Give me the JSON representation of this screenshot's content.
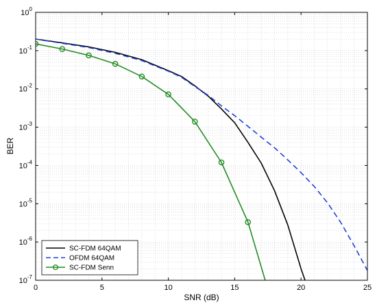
{
  "chart_data": {
    "type": "line",
    "title": "",
    "xlabel": "SNR (dB)",
    "ylabel": "BER",
    "xlim": [
      0,
      25
    ],
    "ylim": [
      1e-07,
      1
    ],
    "yscale": "log",
    "grid": true,
    "legend_position": "bottom-left",
    "x_ticks": [
      {
        "value": 0,
        "label": "0"
      },
      {
        "value": 5,
        "label": "5"
      },
      {
        "value": 10,
        "label": "10"
      },
      {
        "value": 15,
        "label": "15"
      },
      {
        "value": 20,
        "label": "20"
      },
      {
        "value": 25,
        "label": "25"
      }
    ],
    "y_ticks": [
      {
        "exp": 0,
        "base": "10",
        "exponent": "0"
      },
      {
        "exp": -1,
        "base": "10",
        "exponent": "-1"
      },
      {
        "exp": -2,
        "base": "10",
        "exponent": "-2"
      },
      {
        "exp": -3,
        "base": "10",
        "exponent": "-3"
      },
      {
        "exp": -4,
        "base": "10",
        "exponent": "-4"
      },
      {
        "exp": -5,
        "base": "10",
        "exponent": "-5"
      },
      {
        "exp": -6,
        "base": "10",
        "exponent": "-6"
      },
      {
        "exp": -7,
        "base": "10",
        "exponent": "-7"
      }
    ],
    "series": [
      {
        "name": "SC-FDM 64QAM",
        "color": "#000000",
        "style": "solid",
        "marker": "none",
        "x": [
          0,
          2,
          4,
          6,
          8,
          10,
          11,
          12,
          13,
          14,
          15,
          16,
          17,
          18,
          19,
          20,
          20.3
        ],
        "y": [
          0.2,
          0.16,
          0.125,
          0.09,
          0.058,
          0.03,
          0.021,
          0.012,
          0.0065,
          0.003,
          0.0013,
          0.0004,
          0.000115,
          2.2e-05,
          2.8e-06,
          2e-07,
          1e-07
        ]
      },
      {
        "name": "OFDM  64QAM",
        "color": "#1f3fdc",
        "style": "dashed",
        "marker": "none",
        "x": [
          0,
          2,
          4,
          6,
          8,
          10,
          11,
          12,
          13,
          14,
          15,
          16,
          17,
          18,
          19,
          20,
          21,
          22,
          23,
          24,
          25
        ],
        "y": [
          0.2,
          0.155,
          0.12,
          0.085,
          0.055,
          0.029,
          0.02,
          0.0115,
          0.0068,
          0.0036,
          0.002,
          0.00105,
          0.00055,
          0.00029,
          0.00014,
          6.5e-05,
          2.8e-05,
          1.05e-05,
          3.2e-06,
          8e-07,
          1.8e-07
        ]
      },
      {
        "name": "SC-FDM Senn",
        "color": "#228b22",
        "style": "solid",
        "marker": "circle",
        "x": [
          0,
          2,
          4,
          6,
          8,
          10,
          12,
          14,
          16,
          17.3
        ],
        "y": [
          0.15,
          0.11,
          0.075,
          0.045,
          0.021,
          0.0072,
          0.0014,
          0.00012,
          3.3e-06,
          1e-07
        ]
      }
    ]
  }
}
